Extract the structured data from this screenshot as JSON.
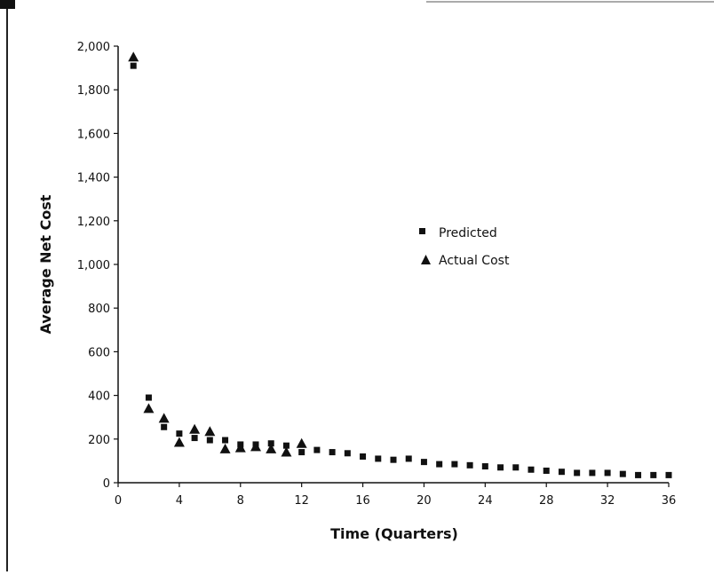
{
  "chart_data": {
    "type": "scatter",
    "title": "",
    "xlabel": "Time (Quarters)",
    "ylabel": "Average Net Cost",
    "xlim": [
      0,
      36
    ],
    "ylim": [
      0,
      2000
    ],
    "x_ticks": [
      0,
      4,
      8,
      12,
      16,
      20,
      24,
      28,
      32,
      36
    ],
    "y_ticks": [
      0,
      200,
      400,
      600,
      800,
      1000,
      1200,
      1400,
      1600,
      1800,
      2000
    ],
    "x_tick_labels": [
      "0",
      "4",
      "8",
      "12",
      "16",
      "20",
      "24",
      "28",
      "32",
      "36"
    ],
    "y_tick_labels": [
      "0",
      "200",
      "400",
      "600",
      "800",
      "1,000",
      "1,200",
      "1,400",
      "1,600",
      "1,800",
      "2,000"
    ],
    "grid": false,
    "legend_position": "center-right",
    "series": [
      {
        "name": "Predicted",
        "marker": "square",
        "color": "#111111",
        "x": [
          1,
          2,
          3,
          4,
          5,
          6,
          7,
          8,
          9,
          10,
          11,
          12,
          13,
          14,
          15,
          16,
          17,
          18,
          19,
          20,
          21,
          22,
          23,
          24,
          25,
          26,
          27,
          28,
          29,
          30,
          31,
          32,
          33,
          34,
          35,
          36
        ],
        "y": [
          1910,
          390,
          255,
          225,
          205,
          195,
          195,
          175,
          175,
          180,
          170,
          140,
          150,
          140,
          135,
          120,
          110,
          105,
          110,
          95,
          85,
          85,
          80,
          75,
          70,
          70,
          60,
          55,
          50,
          45,
          45,
          45,
          40,
          35,
          35,
          35
        ]
      },
      {
        "name": "Actual Cost",
        "marker": "triangle",
        "color": "#111111",
        "x": [
          1,
          2,
          3,
          4,
          5,
          6,
          7,
          8,
          9,
          10,
          11,
          12
        ],
        "y": [
          1950,
          340,
          295,
          185,
          245,
          235,
          155,
          160,
          165,
          155,
          140,
          180
        ]
      }
    ]
  }
}
